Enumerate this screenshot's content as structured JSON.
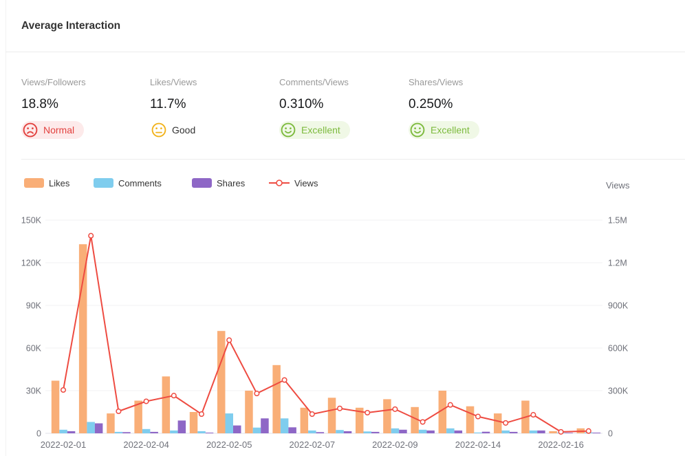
{
  "header": {
    "title": "Average Interaction"
  },
  "metrics": [
    {
      "label": "Views/Followers",
      "value": "18.8%",
      "status": "Normal",
      "face": "sad",
      "face_color": "#e2413e",
      "status_color": "#e2413e",
      "badge_bg": "#fdeaea"
    },
    {
      "label": "Likes/Views",
      "value": "11.7%",
      "status": "Good",
      "face": "neutral",
      "face_color": "#f2b31c",
      "status_color": "#333333",
      "badge_bg": "transparent"
    },
    {
      "label": "Comments/Views",
      "value": "0.310%",
      "status": "Excellent",
      "face": "happy",
      "face_color": "#7cba3d",
      "status_color": "#7cba3d",
      "badge_bg": "#f0f8e6"
    },
    {
      "label": "Shares/Views",
      "value": "0.250%",
      "status": "Excellent",
      "face": "happy",
      "face_color": "#7cba3d",
      "status_color": "#7cba3d",
      "badge_bg": "#f0f8e6"
    }
  ],
  "legend": [
    {
      "label": "Likes",
      "type": "bar",
      "color": "#f9ae77"
    },
    {
      "label": "Comments",
      "type": "bar",
      "color": "#7fcdee"
    },
    {
      "label": "Shares",
      "type": "bar",
      "color": "#8e67c6"
    },
    {
      "label": "Views",
      "type": "line",
      "color": "#ee4b41"
    }
  ],
  "chart_data": {
    "type": "bar",
    "num_groups": 20,
    "x_tick_labels": [
      {
        "index": 0,
        "label": "2022-02-01"
      },
      {
        "index": 3,
        "label": "2022-02-04"
      },
      {
        "index": 6,
        "label": "2022-02-05"
      },
      {
        "index": 9,
        "label": "2022-02-07"
      },
      {
        "index": 12,
        "label": "2022-02-09"
      },
      {
        "index": 15,
        "label": "2022-02-14"
      },
      {
        "index": 18,
        "label": "2022-02-16"
      }
    ],
    "series": [
      {
        "name": "Likes",
        "type": "bar",
        "axis": "left",
        "color": "#f9ae77",
        "values": [
          37000,
          133000,
          14000,
          23000,
          40000,
          15000,
          72000,
          30000,
          48000,
          18000,
          25000,
          18000,
          24000,
          18500,
          30000,
          19000,
          14000,
          23000,
          1500,
          3500
        ]
      },
      {
        "name": "Comments",
        "type": "bar",
        "axis": "left",
        "color": "#7fcdee",
        "values": [
          2500,
          8000,
          1000,
          3000,
          2000,
          1500,
          14000,
          4000,
          10500,
          2000,
          2300,
          1300,
          3500,
          2500,
          3500,
          600,
          2000,
          2000,
          500,
          700
        ]
      },
      {
        "name": "Shares",
        "type": "bar",
        "axis": "left",
        "color": "#8e67c6",
        "values": [
          1500,
          7000,
          800,
          1000,
          9000,
          500,
          5500,
          10500,
          4200,
          800,
          1500,
          1000,
          2500,
          2000,
          2000,
          1100,
          1000,
          2000,
          400,
          500
        ]
      },
      {
        "name": "Views",
        "type": "line",
        "axis": "right",
        "color": "#ee4b41",
        "values": [
          305000,
          1390000,
          155000,
          225000,
          265000,
          135000,
          655000,
          280000,
          375000,
          135000,
          175000,
          145000,
          170000,
          80000,
          200000,
          118000,
          73000,
          130000,
          10000,
          16000
        ]
      }
    ],
    "left_axis": {
      "max": 150000,
      "ticks": [
        "150K",
        "120K",
        "90K",
        "60K",
        "30K",
        "0"
      ]
    },
    "right_axis": {
      "title": "Views",
      "max": 1500000,
      "ticks": [
        "1.5M",
        "1.2M",
        "900K",
        "600K",
        "300K",
        "0"
      ]
    },
    "grid": true,
    "legend_position": "top-left"
  }
}
